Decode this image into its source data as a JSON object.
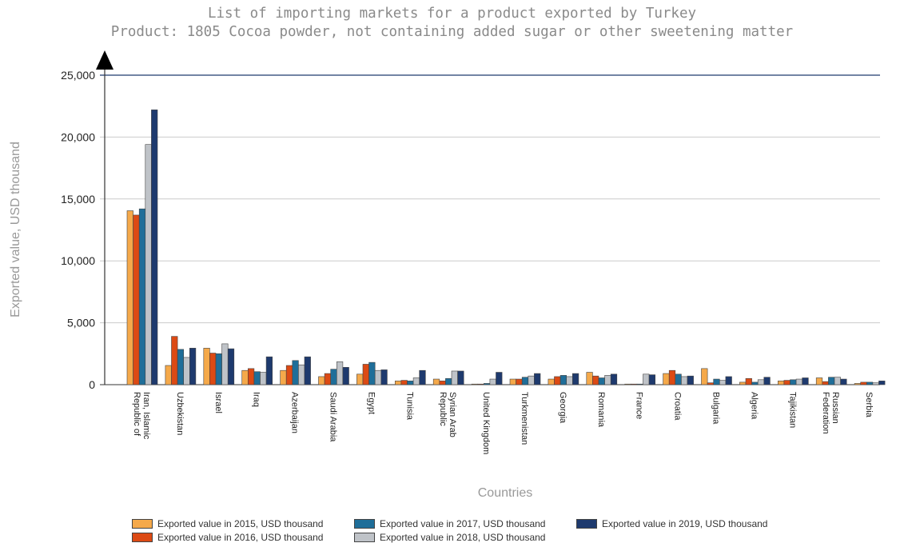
{
  "chart_data": {
    "type": "bar",
    "title": "List of importing markets for a product exported by Turkey",
    "subtitle": "Product: 1805 Cocoa powder, not containing added sugar or other sweetening matter",
    "xlabel": "Countries",
    "ylabel": "Exported value, USD thousand",
    "ylim": [
      0,
      25000
    ],
    "yticks": [
      "0",
      "5,000",
      "10,000",
      "15,000",
      "20,000",
      "25,000"
    ],
    "grid": true,
    "legend_position": "bottom",
    "categories": [
      "Iran, Islamic Republic of",
      "Uzbekistan",
      "Israel",
      "Iraq",
      "Azerbaijan",
      "Saudi Arabia",
      "Egypt",
      "Tunisia",
      "Syrian Arab Republic",
      "United Kingdom",
      "Turkmenistan",
      "Georgia",
      "Romania",
      "France",
      "Croatia",
      "Bulgaria",
      "Algeria",
      "Tajikistan",
      "Russian Federation",
      "Serbia"
    ],
    "series": [
      {
        "name": "Exported value in 2015, USD thousand",
        "color": "#f5a94a",
        "values": [
          14050,
          1550,
          2950,
          1150,
          1150,
          650,
          850,
          300,
          450,
          50,
          450,
          450,
          1000,
          50,
          900,
          1300,
          200,
          300,
          550,
          100
        ]
      },
      {
        "name": "Exported value in 2016, USD thousand",
        "color": "#dc4a14",
        "values": [
          13700,
          3900,
          2550,
          1300,
          1550,
          900,
          1650,
          350,
          300,
          50,
          450,
          650,
          700,
          50,
          1150,
          150,
          500,
          350,
          250,
          200
        ]
      },
      {
        "name": "Exported value in 2017, USD thousand",
        "color": "#1f6e99",
        "values": [
          14200,
          2850,
          2500,
          1050,
          1950,
          1250,
          1800,
          300,
          500,
          100,
          600,
          750,
          550,
          50,
          850,
          450,
          200,
          400,
          600,
          200
        ]
      },
      {
        "name": "Exported value in 2018, USD thousand",
        "color": "#bfc3c8",
        "values": [
          19400,
          2200,
          3300,
          1000,
          1600,
          1850,
          1150,
          550,
          1100,
          450,
          700,
          650,
          750,
          850,
          650,
          350,
          400,
          450,
          600,
          150
        ]
      },
      {
        "name": "Exported value in 2019, USD thousand",
        "color": "#1e3a6e",
        "values": [
          22200,
          2950,
          2900,
          2250,
          2250,
          1400,
          1200,
          1150,
          1100,
          1000,
          900,
          900,
          850,
          800,
          700,
          650,
          600,
          550,
          450,
          300
        ]
      }
    ]
  }
}
